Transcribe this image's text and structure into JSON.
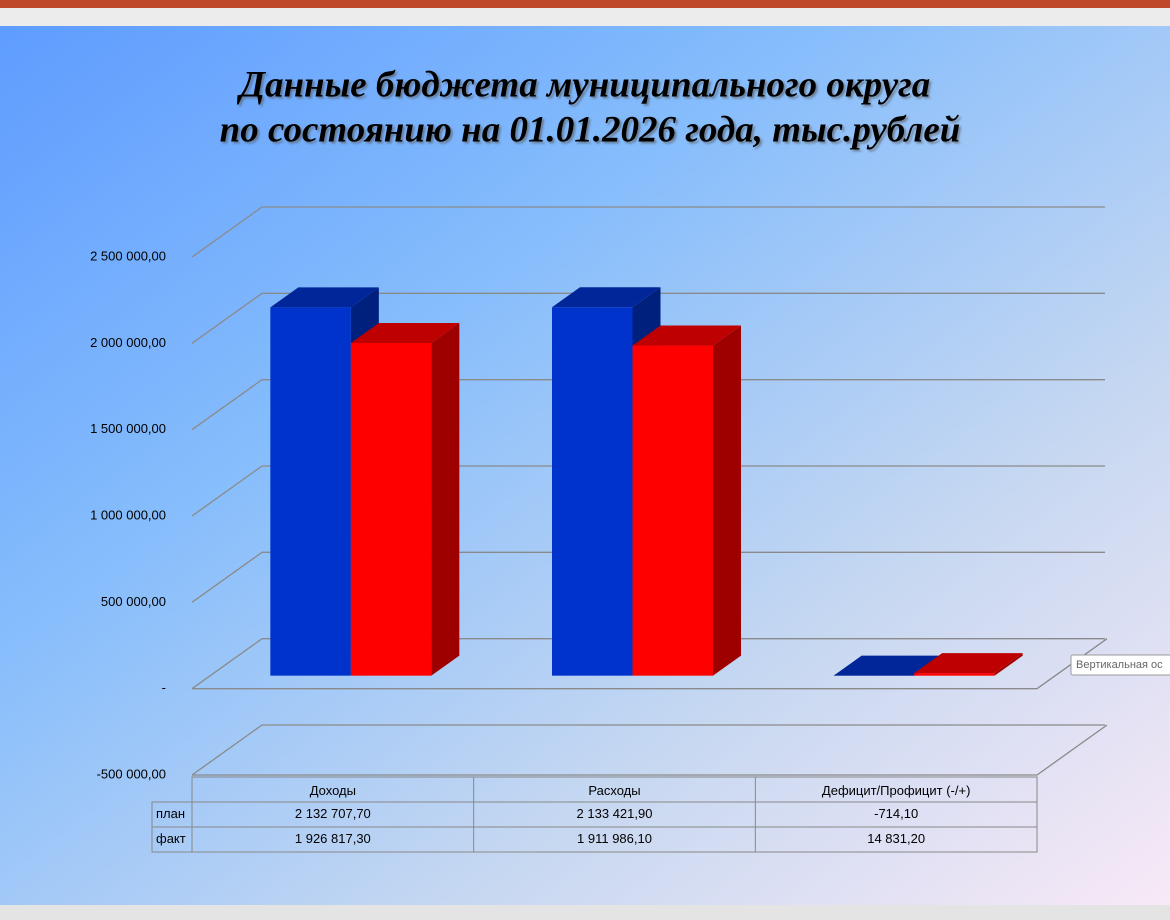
{
  "chart_data": {
    "type": "bar3d",
    "title": "Данные бюджета муниципального округа",
    "subtitle": "по состоянию на 01.01.2026 года, тыс.рублей",
    "categories": [
      "Доходы",
      "Расходы",
      "Дефицит/Профицит (-/+)"
    ],
    "series": [
      {
        "name": "план",
        "color": "#0033cc",
        "values": [
          2132707.7,
          2133421.9,
          -714.1
        ],
        "value_labels": [
          "2 132 707,70",
          "2 133 421,90",
          "-714,10"
        ]
      },
      {
        "name": "факт",
        "color": "#ff0000",
        "values": [
          1926817.3,
          1911986.1,
          14831.2
        ],
        "value_labels": [
          "1 926 817,30",
          "1 911 986,10",
          "14 831,20"
        ]
      }
    ],
    "ylim": [
      -500000,
      2500000
    ],
    "yticks": [
      {
        "value": -500000,
        "label": "-500 000,00"
      },
      {
        "value": 0,
        "label": "-"
      },
      {
        "value": 500000,
        "label": "500 000,00"
      },
      {
        "value": 1000000,
        "label": "1 000 000,00"
      },
      {
        "value": 1500000,
        "label": "1 500 000,00"
      },
      {
        "value": 2000000,
        "label": "2 000 000,00"
      },
      {
        "value": 2500000,
        "label": "2 500 000,00"
      }
    ],
    "grid": true,
    "data_table": true
  },
  "tooltip": "Вертикальная ос"
}
